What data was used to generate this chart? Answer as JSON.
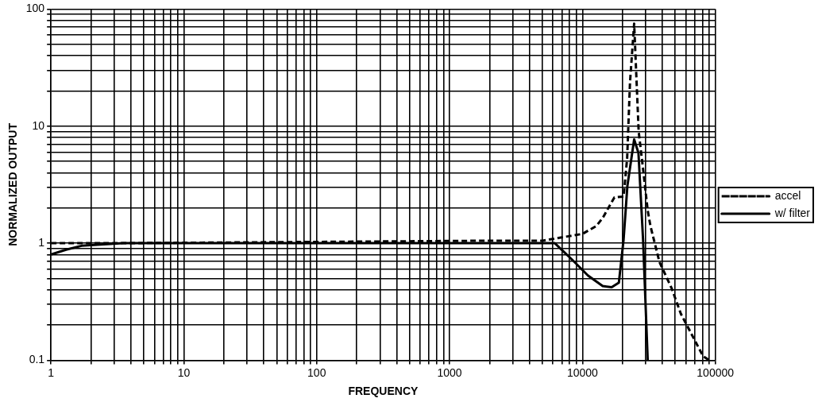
{
  "chart_data": {
    "type": "line",
    "xlabel": "FREQUENCY",
    "ylabel": "NORMALIZED OUTPUT",
    "log": "xy",
    "grid": true,
    "legend": "right",
    "marker": "none",
    "xlim": [
      1,
      100000
    ],
    "ylim": [
      0.1,
      100
    ],
    "xticks": [
      1,
      {
        "value": 2,
        "label": null
      },
      {
        "value": 3,
        "label": null
      },
      {
        "value": 4,
        "label": null
      },
      {
        "value": 5,
        "label": null
      },
      {
        "value": 6,
        "label": null
      },
      {
        "value": 7,
        "label": null
      },
      {
        "value": 8,
        "label": null
      },
      {
        "value": 9,
        "label": null
      },
      10,
      {
        "value": 20,
        "label": null
      },
      {
        "value": 30,
        "label": null
      },
      {
        "value": 40,
        "label": null
      },
      {
        "value": 50,
        "label": null
      },
      {
        "value": 60,
        "label": null
      },
      {
        "value": 70,
        "label": null
      },
      {
        "value": 80,
        "label": null
      },
      {
        "value": 90,
        "label": null
      },
      100,
      {
        "value": 200,
        "label": null
      },
      {
        "value": 300,
        "label": null
      },
      {
        "value": 400,
        "label": null
      },
      {
        "value": 500,
        "label": null
      },
      {
        "value": 600,
        "label": null
      },
      {
        "value": 700,
        "label": null
      },
      {
        "value": 800,
        "label": null
      },
      {
        "value": 900,
        "label": null
      },
      1000,
      {
        "value": 2000,
        "label": null
      },
      {
        "value": 3000,
        "label": null
      },
      {
        "value": 4000,
        "label": null
      },
      {
        "value": 5000,
        "label": null
      },
      {
        "value": 6000,
        "label": null
      },
      {
        "value": 7000,
        "label": null
      },
      {
        "value": 8000,
        "label": null
      },
      {
        "value": 9000,
        "label": null
      },
      10000,
      {
        "value": 20000,
        "label": null
      },
      {
        "value": 30000,
        "label": null
      },
      {
        "value": 40000,
        "label": null
      },
      {
        "value": 50000,
        "label": null
      },
      {
        "value": 60000,
        "label": null
      },
      {
        "value": 70000,
        "label": null
      },
      {
        "value": 80000,
        "label": null
      },
      {
        "value": 90000,
        "label": null
      },
      100000
    ],
    "yticks": [
      0.1,
      {
        "value": 0.2,
        "label": null
      },
      {
        "value": 0.3,
        "label": null
      },
      {
        "value": 0.4,
        "label": null
      },
      {
        "value": 0.5,
        "label": null
      },
      {
        "value": 0.6,
        "label": null
      },
      {
        "value": 0.7,
        "label": null
      },
      {
        "value": 0.8,
        "label": null
      },
      {
        "value": 0.9,
        "label": null
      },
      1,
      {
        "value": 2,
        "label": null
      },
      {
        "value": 3,
        "label": null
      },
      {
        "value": 4,
        "label": null
      },
      {
        "value": 5,
        "label": null
      },
      {
        "value": 6,
        "label": null
      },
      {
        "value": 7,
        "label": null
      },
      {
        "value": 8,
        "label": null
      },
      {
        "value": 9,
        "label": null
      },
      10,
      {
        "value": 20,
        "label": null
      },
      {
        "value": 30,
        "label": null
      },
      {
        "value": 40,
        "label": null
      },
      {
        "value": 50,
        "label": null
      },
      {
        "value": 60,
        "label": null
      },
      {
        "value": 70,
        "label": null
      },
      {
        "value": 80,
        "label": null
      },
      {
        "value": 90,
        "label": null
      },
      100
    ],
    "series": [
      {
        "name": "accel",
        "color": "#000000",
        "line_style": "dashed",
        "x": [
          1,
          3.5,
          2000,
          5000,
          8000,
          10000,
          12700,
          14200,
          17400,
          20400,
          21700,
          22800,
          24500,
          26500,
          28600,
          31000,
          32500,
          38000,
          47000,
          55000,
          64000,
          81000,
          90000
        ],
        "values": [
          1,
          1,
          1.05,
          1.05,
          1.15,
          1.2,
          1.4,
          1.64,
          2.46,
          2.5,
          5.3,
          23.6,
          75,
          9,
          4.3,
          1.9,
          1.4,
          0.69,
          0.41,
          0.25,
          0.18,
          0.108,
          0.1
        ]
      },
      {
        "name": "w/ filter",
        "color": "#000000",
        "line_style": "solid",
        "x": [
          1,
          1.3,
          1.7,
          3.5,
          5000,
          6200,
          8500,
          11000,
          14200,
          16600,
          18800,
          20400,
          21800,
          24500,
          26400,
          28600,
          31000
        ],
        "values": [
          0.8,
          0.88,
          0.95,
          1,
          1,
          1,
          0.71,
          0.53,
          0.43,
          0.42,
          0.46,
          1.07,
          3.1,
          7.7,
          5.9,
          1.07,
          0.1
        ]
      }
    ]
  }
}
